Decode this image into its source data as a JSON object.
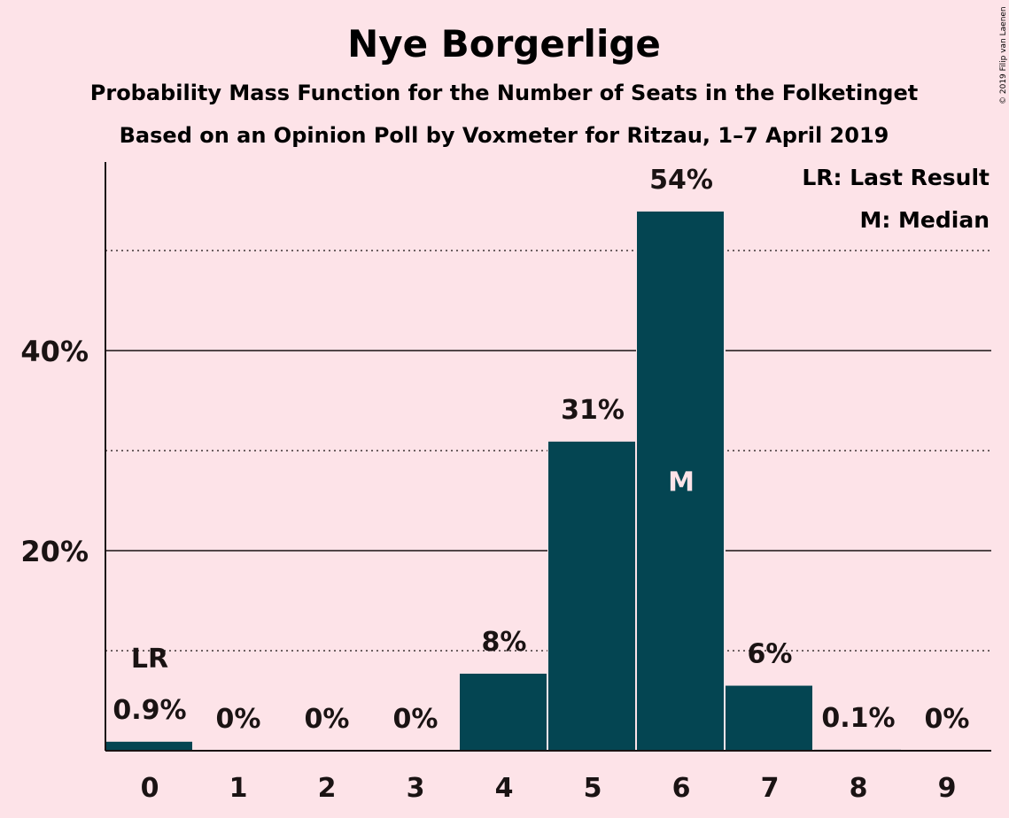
{
  "header": {
    "title": "Nye Borgerlige",
    "subtitle1": "Probability Mass Function for the Number of Seats in the Folketinget",
    "subtitle2": "Based on an Opinion Poll by Voxmeter for Ritzau, 1–7 April 2019"
  },
  "legend": {
    "lr": "LR: Last Result",
    "m": "M: Median"
  },
  "copyright": "© 2019 Filip van Laenen",
  "colors": {
    "background": "#fde3e8",
    "bar": "#044552",
    "text": "#1a1313",
    "median_label": "#fde3e8"
  },
  "chart_data": {
    "type": "bar",
    "categories": [
      "0",
      "1",
      "2",
      "3",
      "4",
      "5",
      "6",
      "7",
      "8",
      "9"
    ],
    "values": [
      0.9,
      0,
      0,
      0,
      7.7,
      30.9,
      53.9,
      6.5,
      0.1,
      0
    ],
    "data_labels": [
      "0.9%",
      "0%",
      "0%",
      "0%",
      "8%",
      "31%",
      "54%",
      "6%",
      "0.1%",
      "0%"
    ],
    "y_ticks": [
      {
        "value": 20,
        "label": "20%"
      },
      {
        "value": 40,
        "label": "40%"
      }
    ],
    "minor_gridlines": [
      10,
      30,
      50
    ],
    "ylim": [
      0,
      59
    ],
    "last_result": {
      "category": "0",
      "label": "LR"
    },
    "median": {
      "category": "6",
      "label": "M"
    },
    "grid": true,
    "legend_position": "top-right"
  }
}
